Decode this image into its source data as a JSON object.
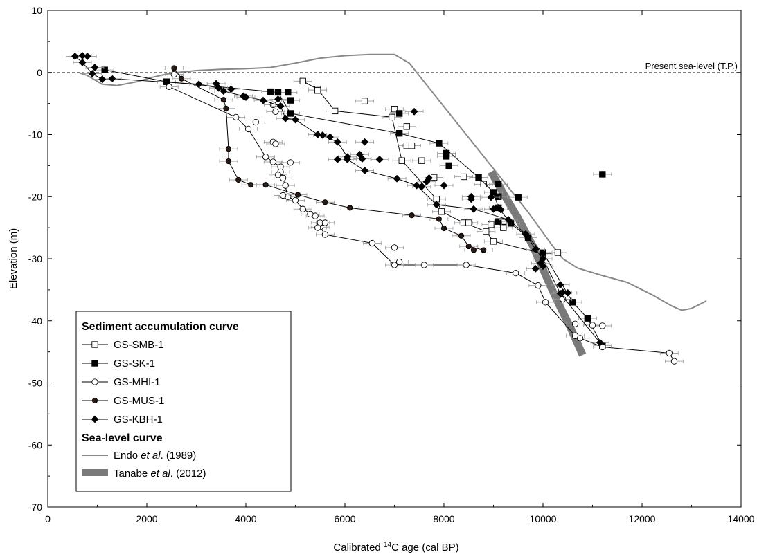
{
  "chart_data": {
    "type": "scatter",
    "xlabel_prefix": "Calibrated ",
    "xlabel_sup": "14",
    "xlabel_suffix": "C age (cal BP)",
    "ylabel": "Elevation (m)",
    "xlim": [
      0,
      14000
    ],
    "ylim": [
      -70,
      10
    ],
    "xticks": [
      0,
      2000,
      4000,
      6000,
      8000,
      10000,
      12000,
      14000
    ],
    "yticks": [
      10,
      0,
      -10,
      -20,
      -30,
      -40,
      -50,
      -60,
      -70
    ],
    "grid": false,
    "legend_position": "bottom-left",
    "annotation": {
      "text": "Present sea-level (T.P.)",
      "y": 0
    },
    "legend": {
      "heading_sediment": "Sediment accumulation curve",
      "heading_sea": "Sea-level curve",
      "endo_name": "Endo",
      "endo_etal": "et al",
      "endo_year": ". (1989)",
      "tanabe_name": "Tanabe",
      "tanabe_etal": "et al",
      "tanabe_year": ". (2012)"
    },
    "series": [
      {
        "name": "GS-SMB-1",
        "marker": "square-open",
        "points": [
          [
            5150,
            -1.4
          ],
          [
            5450,
            -2.7
          ],
          [
            5800,
            -6.2
          ],
          [
            6950,
            -7.2
          ],
          [
            7150,
            -14.2
          ],
          [
            7850,
            -20.4
          ],
          [
            7950,
            -22.4
          ],
          [
            8400,
            -24.2
          ],
          [
            8850,
            -25.6
          ],
          [
            9000,
            -27.2
          ],
          [
            10000,
            -29.2
          ],
          [
            10300,
            -29.0
          ]
        ],
        "extra": [
          [
            5450,
            -2.9
          ],
          [
            6400,
            -4.6
          ],
          [
            7000,
            -5.9
          ],
          [
            7250,
            -8.7
          ],
          [
            7250,
            -11.8
          ],
          [
            7350,
            -11.8
          ],
          [
            7550,
            -14.2
          ],
          [
            7800,
            -16.9
          ],
          [
            8500,
            -24.2
          ],
          [
            8950,
            -24.5
          ],
          [
            9200,
            -25.0
          ],
          [
            9200,
            -24.0
          ],
          [
            8800,
            -18.0
          ],
          [
            8400,
            -16.8
          ]
        ]
      },
      {
        "name": "GS-SK-1",
        "marker": "square-filled",
        "points": [
          [
            1150,
            0.4
          ],
          [
            2400,
            -1.5
          ],
          [
            4500,
            -3.1
          ],
          [
            4650,
            -3.2
          ],
          [
            4900,
            -6.6
          ],
          [
            7100,
            -9.8
          ],
          [
            7900,
            -11.4
          ],
          [
            8700,
            -16.9
          ],
          [
            9000,
            -19.3
          ],
          [
            9100,
            -21.8
          ],
          [
            9350,
            -24.3
          ],
          [
            9700,
            -26.6
          ],
          [
            10000,
            -29.0
          ],
          [
            10600,
            -37.0
          ],
          [
            10900,
            -39.6
          ],
          [
            11200,
            -44.0
          ]
        ],
        "extra": [
          [
            4900,
            -4.5
          ],
          [
            4850,
            -3.2
          ],
          [
            7100,
            -6.6
          ],
          [
            8050,
            -13.5
          ],
          [
            8100,
            -15.0
          ],
          [
            8050,
            -13.0
          ],
          [
            9100,
            -20.0
          ],
          [
            9500,
            -20.1
          ],
          [
            11200,
            -16.4
          ],
          [
            9100,
            -18.0
          ],
          [
            9100,
            -24.0
          ]
        ]
      },
      {
        "name": "GS-MHI-1",
        "marker": "circle-open",
        "points": [
          [
            2450,
            -2.3
          ],
          [
            3800,
            -7.2
          ],
          [
            4050,
            -9.1
          ],
          [
            4400,
            -13.6
          ],
          [
            4550,
            -14.4
          ],
          [
            4700,
            -15.2
          ],
          [
            4750,
            -17.0
          ],
          [
            4850,
            -20.0
          ],
          [
            5000,
            -20.6
          ],
          [
            5150,
            -22.0
          ],
          [
            5400,
            -23.1
          ],
          [
            5500,
            -24.9
          ],
          [
            5600,
            -26.1
          ],
          [
            6550,
            -27.5
          ],
          [
            7000,
            -31.0
          ],
          [
            7600,
            -31.0
          ],
          [
            8450,
            -31.0
          ],
          [
            9450,
            -32.3
          ],
          [
            9900,
            -34.3
          ],
          [
            10050,
            -37.0
          ],
          [
            10650,
            -42.4
          ],
          [
            10750,
            -42.8
          ],
          [
            11200,
            -44.2
          ],
          [
            12550,
            -45.2
          ],
          [
            12650,
            -46.5
          ]
        ],
        "extra": [
          [
            2550,
            -0.3
          ],
          [
            4550,
            -5.2
          ],
          [
            4600,
            -6.3
          ],
          [
            4200,
            -8.0
          ],
          [
            4550,
            -11.2
          ],
          [
            4600,
            -11.5
          ],
          [
            4900,
            -14.5
          ],
          [
            4800,
            -18.2
          ],
          [
            4750,
            -19.8
          ],
          [
            5300,
            -22.8
          ],
          [
            5500,
            -24.2
          ],
          [
            5600,
            -24.2
          ],
          [
            5450,
            -25.0
          ],
          [
            7000,
            -28.2
          ],
          [
            7100,
            -30.5
          ],
          [
            10400,
            -36.5
          ],
          [
            10650,
            -40.5
          ],
          [
            11000,
            -40.7
          ],
          [
            11200,
            -40.8
          ],
          [
            4700,
            -16.0
          ],
          [
            4650,
            -16.5
          ]
        ]
      },
      {
        "name": "GS-MUS-1",
        "marker": "circle-filled",
        "points": [
          [
            2550,
            0.7
          ],
          [
            2700,
            -1.0
          ],
          [
            3550,
            -4.4
          ],
          [
            3600,
            -5.8
          ],
          [
            3650,
            -12.3
          ],
          [
            3650,
            -14.3
          ],
          [
            3850,
            -17.3
          ],
          [
            4100,
            -18.1
          ],
          [
            4400,
            -18.1
          ],
          [
            5050,
            -19.7
          ],
          [
            5600,
            -20.9
          ],
          [
            6100,
            -21.8
          ],
          [
            7350,
            -23.0
          ],
          [
            7900,
            -23.6
          ],
          [
            8000,
            -25.1
          ],
          [
            8350,
            -26.3
          ],
          [
            8500,
            -28.0
          ],
          [
            8800,
            -28.6
          ]
        ],
        "extra": [
          [
            8600,
            -28.6
          ]
        ]
      },
      {
        "name": "GS-KBH-1",
        "marker": "diamond-filled",
        "points": [
          [
            550,
            2.6
          ],
          [
            700,
            1.6
          ],
          [
            900,
            -0.2
          ],
          [
            1100,
            -1.1
          ],
          [
            1300,
            -1.0
          ],
          [
            3050,
            -1.9
          ],
          [
            3450,
            -2.5
          ],
          [
            3550,
            -3.0
          ],
          [
            3950,
            -3.8
          ],
          [
            4350,
            -4.5
          ],
          [
            4700,
            -5.4
          ],
          [
            4800,
            -7.4
          ],
          [
            5000,
            -7.6
          ],
          [
            5450,
            -10.0
          ],
          [
            5550,
            -10.1
          ],
          [
            5850,
            -11.2
          ],
          [
            6050,
            -13.6
          ],
          [
            6050,
            -14.0
          ],
          [
            6400,
            -15.8
          ],
          [
            7050,
            -17.1
          ],
          [
            7450,
            -18.2
          ],
          [
            7850,
            -21.3
          ],
          [
            8600,
            -22.0
          ],
          [
            9300,
            -23.7
          ],
          [
            9650,
            -26.0
          ],
          [
            9850,
            -28.5
          ],
          [
            10000,
            -30.0
          ],
          [
            10350,
            -35.6
          ],
          [
            11150,
            -43.5
          ]
        ],
        "extra": [
          [
            700,
            2.7
          ],
          [
            800,
            2.6
          ],
          [
            950,
            0.8
          ],
          [
            3400,
            -1.8
          ],
          [
            3700,
            -2.7
          ],
          [
            4000,
            -4.0
          ],
          [
            4650,
            -4.3
          ],
          [
            5700,
            -10.4
          ],
          [
            6400,
            -11.2
          ],
          [
            5850,
            -14.0
          ],
          [
            6350,
            -13.9
          ],
          [
            6700,
            -14.0
          ],
          [
            6300,
            -13.2
          ],
          [
            7400,
            -6.3
          ],
          [
            7700,
            -17.0
          ],
          [
            7650,
            -17.6
          ],
          [
            7550,
            -18.4
          ],
          [
            8000,
            -18.2
          ],
          [
            8550,
            -20.4
          ],
          [
            8550,
            -20.0
          ],
          [
            8950,
            -20.1
          ],
          [
            9100,
            -21.8
          ],
          [
            9150,
            -22.1
          ],
          [
            9000,
            -22.0
          ],
          [
            9950,
            -30.7
          ],
          [
            9850,
            -31.6
          ],
          [
            10000,
            -31.2
          ],
          [
            10350,
            -34.2
          ],
          [
            10400,
            -35.4
          ],
          [
            10500,
            -35.5
          ]
        ]
      }
    ],
    "sea_level_curves": [
      {
        "name": "Endo et al. (1989)",
        "points": [
          [
            650,
            -0.1
          ],
          [
            800,
            -0.5
          ],
          [
            1100,
            -1.9
          ],
          [
            1400,
            -2.1
          ],
          [
            1800,
            -1.5
          ],
          [
            2100,
            -0.8
          ],
          [
            2500,
            -0.1
          ],
          [
            3000,
            0.3
          ],
          [
            3500,
            0.5
          ],
          [
            4000,
            0.6
          ],
          [
            4500,
            0.8
          ],
          [
            5000,
            1.5
          ],
          [
            5500,
            2.3
          ],
          [
            6000,
            2.7
          ],
          [
            6500,
            2.9
          ],
          [
            7000,
            2.9
          ],
          [
            7300,
            1.5
          ],
          [
            7500,
            -0.5
          ],
          [
            7700,
            -2.5
          ],
          [
            8000,
            -5.5
          ],
          [
            8300,
            -8.5
          ],
          [
            8600,
            -11.5
          ],
          [
            8900,
            -14.5
          ],
          [
            9200,
            -17.5
          ],
          [
            9400,
            -19.5
          ],
          [
            9700,
            -22.5
          ],
          [
            10000,
            -25.8
          ],
          [
            10200,
            -28.0
          ],
          [
            10400,
            -30.0
          ],
          [
            10700,
            -31.5
          ],
          [
            11200,
            -32.7
          ],
          [
            11700,
            -33.8
          ],
          [
            12200,
            -35.8
          ],
          [
            12600,
            -37.6
          ],
          [
            12800,
            -38.3
          ],
          [
            13000,
            -38.0
          ],
          [
            13300,
            -36.8
          ]
        ]
      },
      {
        "name": "Tanabe et al. (2012)",
        "points": [
          [
            8950,
            -16.0
          ],
          [
            9200,
            -19.5
          ],
          [
            9500,
            -23.5
          ],
          [
            9800,
            -28.0
          ],
          [
            10100,
            -33.5
          ],
          [
            10300,
            -37.0
          ],
          [
            10550,
            -41.0
          ],
          [
            10800,
            -45.5
          ]
        ]
      }
    ]
  }
}
